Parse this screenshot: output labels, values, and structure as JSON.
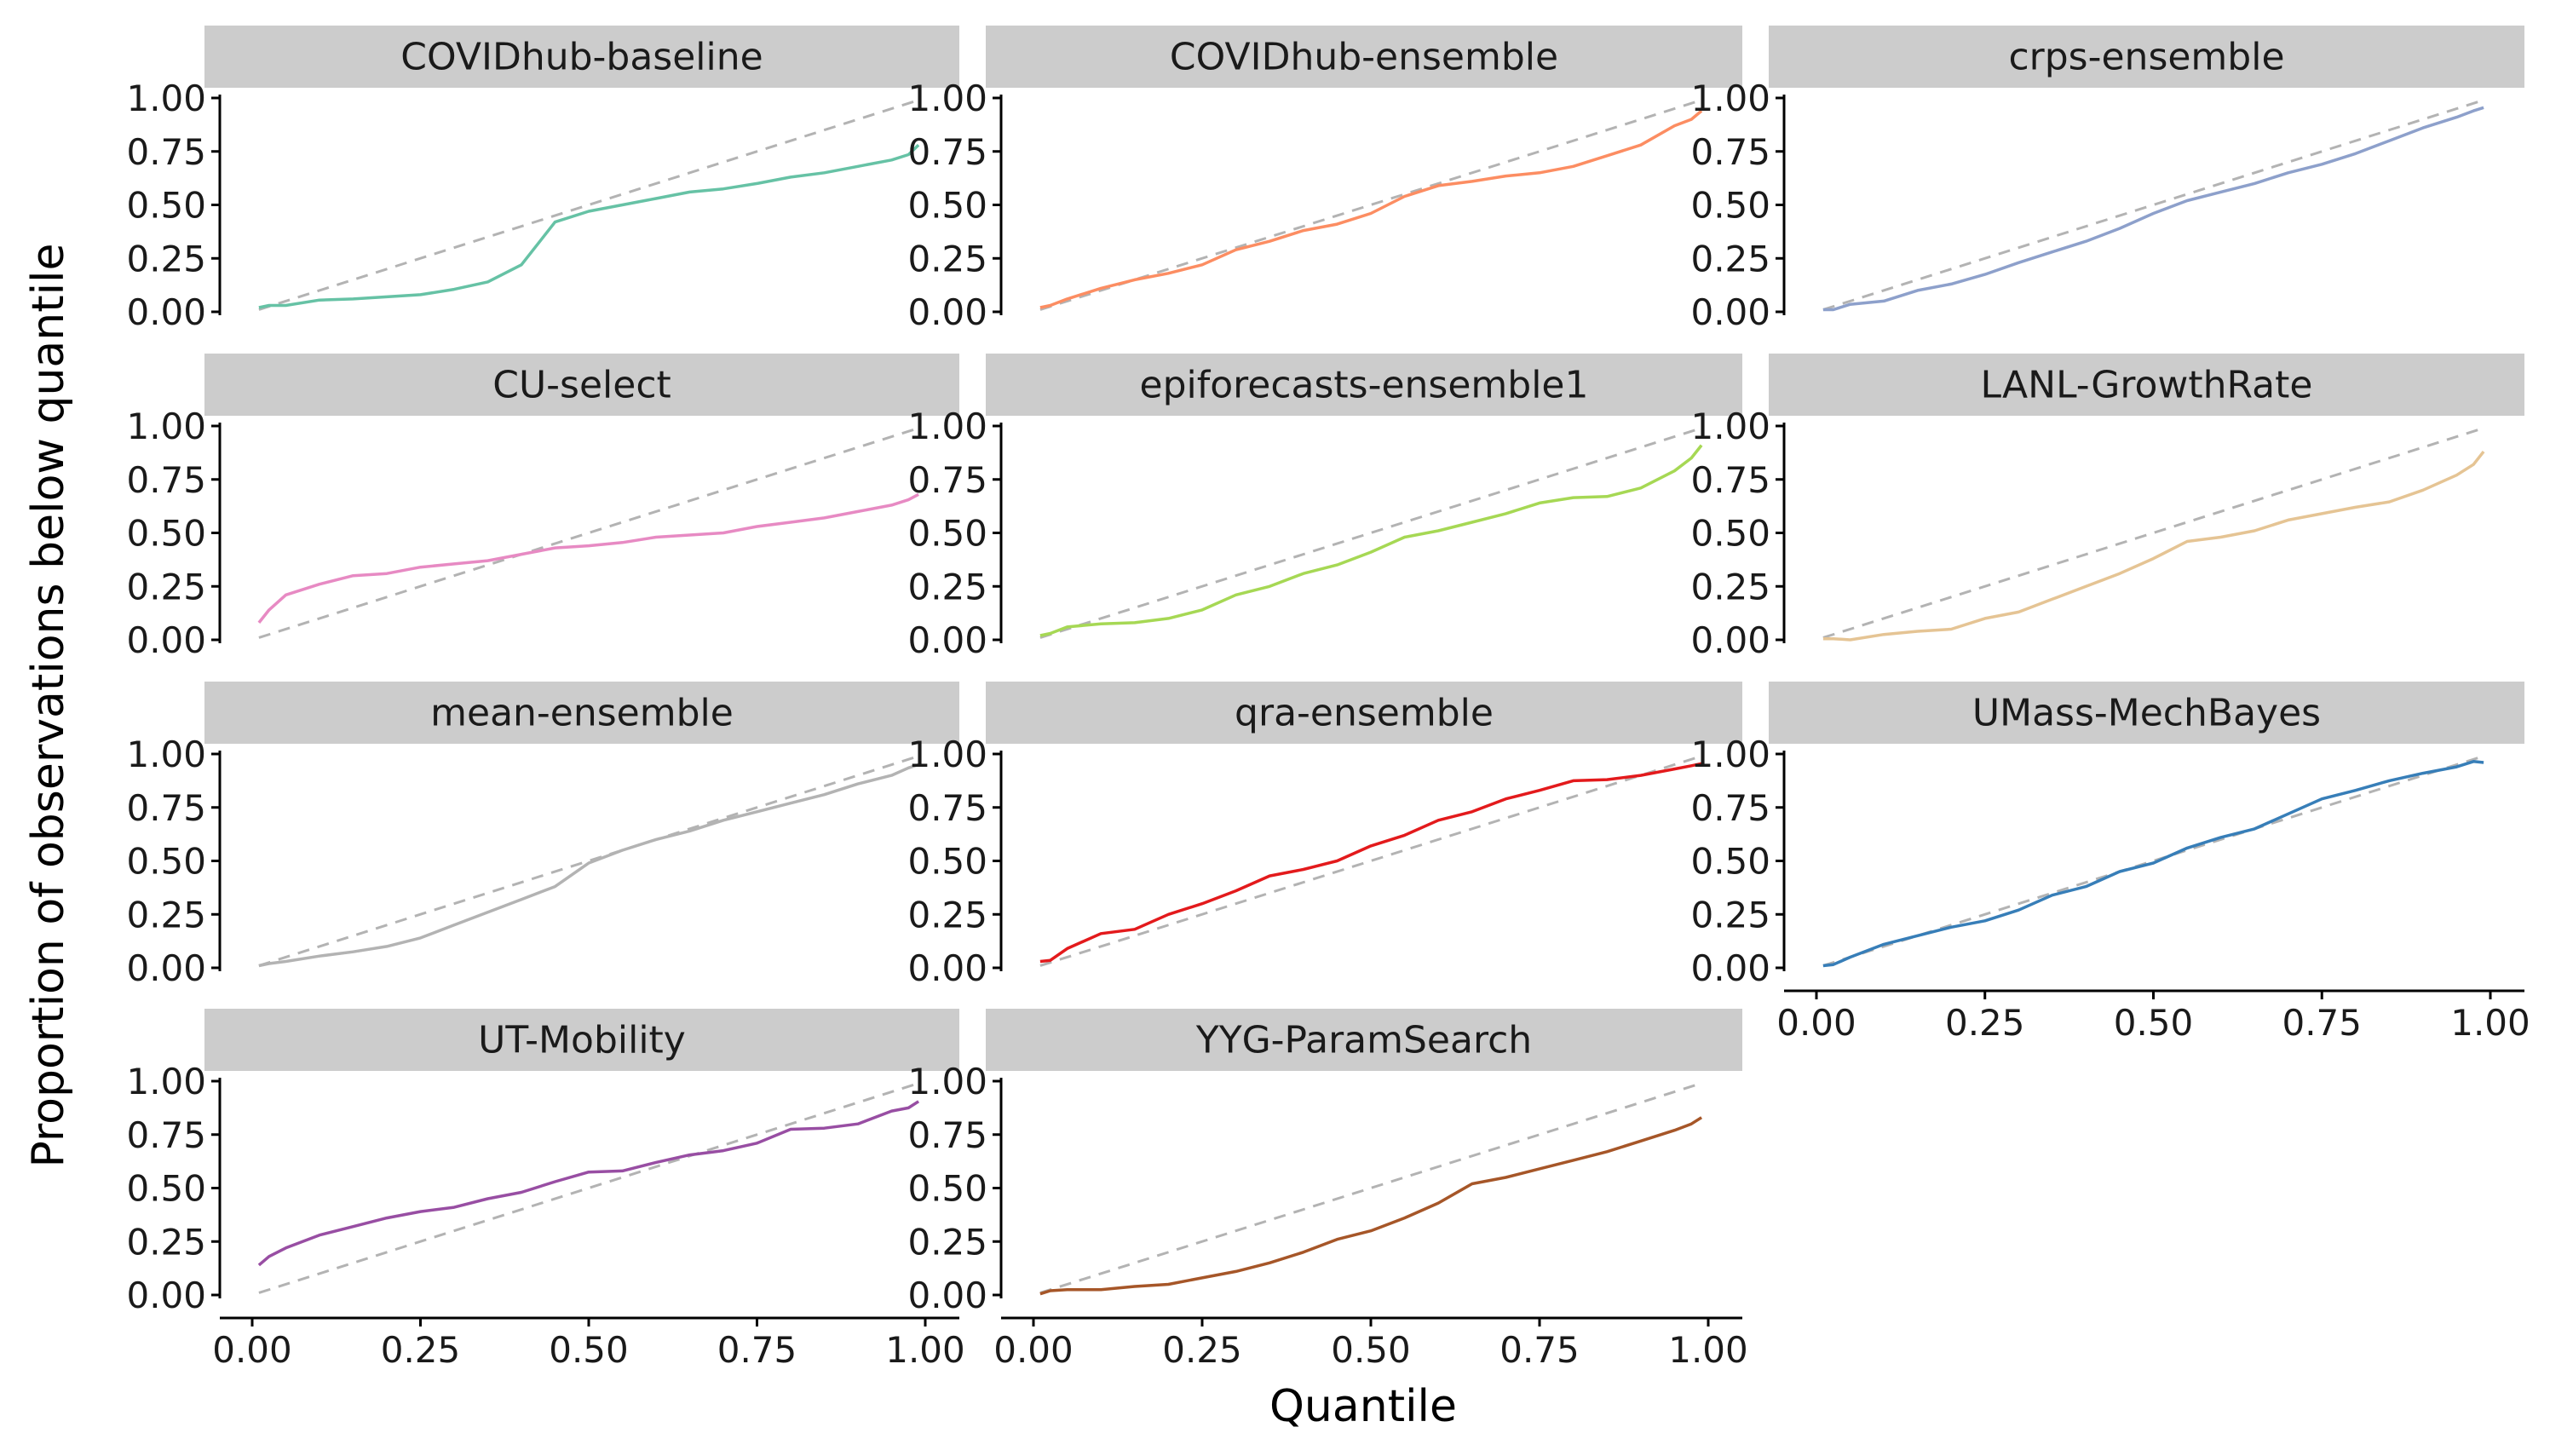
{
  "chart_data": {
    "type": "line",
    "xlabel": "Quantile",
    "ylabel": "Proportion of observations below quantile",
    "xlim": [
      0,
      1
    ],
    "ylim": [
      0,
      1
    ],
    "x_ticks": [
      "0.00",
      "0.25",
      "0.50",
      "0.75",
      "1.00"
    ],
    "y_ticks": [
      "0.00",
      "0.25",
      "0.50",
      "0.75",
      "1.00"
    ],
    "reference_line": "y = x (dashed, grey)",
    "reference_color": "#b3b3b3",
    "strip_color": "#cccccc",
    "grid": false,
    "panels": [
      {
        "name": "COVIDhub-baseline",
        "color": "#66c2a5",
        "points": [
          [
            0.01,
            0.02
          ],
          [
            0.025,
            0.03
          ],
          [
            0.05,
            0.03
          ],
          [
            0.1,
            0.055
          ],
          [
            0.15,
            0.06
          ],
          [
            0.2,
            0.07
          ],
          [
            0.25,
            0.08
          ],
          [
            0.3,
            0.105
          ],
          [
            0.35,
            0.14
          ],
          [
            0.4,
            0.22
          ],
          [
            0.45,
            0.42
          ],
          [
            0.5,
            0.47
          ],
          [
            0.55,
            0.5
          ],
          [
            0.6,
            0.53
          ],
          [
            0.65,
            0.56
          ],
          [
            0.7,
            0.575
          ],
          [
            0.75,
            0.6
          ],
          [
            0.8,
            0.63
          ],
          [
            0.85,
            0.65
          ],
          [
            0.9,
            0.68
          ],
          [
            0.95,
            0.71
          ],
          [
            0.975,
            0.735
          ],
          [
            0.99,
            0.78
          ]
        ]
      },
      {
        "name": "COVIDhub-ensemble",
        "color": "#fc8d62",
        "points": [
          [
            0.01,
            0.02
          ],
          [
            0.025,
            0.03
          ],
          [
            0.05,
            0.06
          ],
          [
            0.1,
            0.11
          ],
          [
            0.15,
            0.15
          ],
          [
            0.2,
            0.18
          ],
          [
            0.25,
            0.22
          ],
          [
            0.3,
            0.29
          ],
          [
            0.35,
            0.33
          ],
          [
            0.4,
            0.38
          ],
          [
            0.45,
            0.41
          ],
          [
            0.5,
            0.46
          ],
          [
            0.55,
            0.54
          ],
          [
            0.6,
            0.59
          ],
          [
            0.65,
            0.61
          ],
          [
            0.7,
            0.635
          ],
          [
            0.75,
            0.65
          ],
          [
            0.8,
            0.68
          ],
          [
            0.85,
            0.73
          ],
          [
            0.9,
            0.78
          ],
          [
            0.95,
            0.87
          ],
          [
            0.975,
            0.9
          ],
          [
            0.99,
            0.94
          ]
        ]
      },
      {
        "name": "crps-ensemble",
        "color": "#8da0cb",
        "points": [
          [
            0.01,
            0.01
          ],
          [
            0.025,
            0.01
          ],
          [
            0.05,
            0.035
          ],
          [
            0.1,
            0.05
          ],
          [
            0.15,
            0.1
          ],
          [
            0.2,
            0.13
          ],
          [
            0.25,
            0.175
          ],
          [
            0.3,
            0.23
          ],
          [
            0.35,
            0.28
          ],
          [
            0.4,
            0.33
          ],
          [
            0.45,
            0.39
          ],
          [
            0.5,
            0.46
          ],
          [
            0.55,
            0.52
          ],
          [
            0.6,
            0.56
          ],
          [
            0.65,
            0.6
          ],
          [
            0.7,
            0.65
          ],
          [
            0.75,
            0.69
          ],
          [
            0.8,
            0.74
          ],
          [
            0.85,
            0.8
          ],
          [
            0.9,
            0.86
          ],
          [
            0.95,
            0.91
          ],
          [
            0.975,
            0.94
          ],
          [
            0.99,
            0.955
          ]
        ]
      },
      {
        "name": "CU-select",
        "color": "#e78ac3",
        "points": [
          [
            0.01,
            0.08
          ],
          [
            0.025,
            0.14
          ],
          [
            0.05,
            0.21
          ],
          [
            0.1,
            0.26
          ],
          [
            0.15,
            0.3
          ],
          [
            0.2,
            0.31
          ],
          [
            0.25,
            0.34
          ],
          [
            0.3,
            0.355
          ],
          [
            0.35,
            0.37
          ],
          [
            0.4,
            0.4
          ],
          [
            0.45,
            0.43
          ],
          [
            0.5,
            0.44
          ],
          [
            0.55,
            0.455
          ],
          [
            0.6,
            0.48
          ],
          [
            0.65,
            0.49
          ],
          [
            0.7,
            0.5
          ],
          [
            0.75,
            0.53
          ],
          [
            0.8,
            0.55
          ],
          [
            0.85,
            0.57
          ],
          [
            0.9,
            0.6
          ],
          [
            0.95,
            0.63
          ],
          [
            0.975,
            0.655
          ],
          [
            0.99,
            0.68
          ]
        ]
      },
      {
        "name": "epiforecasts-ensemble1",
        "color": "#a6d854",
        "points": [
          [
            0.01,
            0.02
          ],
          [
            0.025,
            0.03
          ],
          [
            0.05,
            0.06
          ],
          [
            0.1,
            0.075
          ],
          [
            0.15,
            0.08
          ],
          [
            0.2,
            0.1
          ],
          [
            0.25,
            0.14
          ],
          [
            0.3,
            0.21
          ],
          [
            0.35,
            0.25
          ],
          [
            0.4,
            0.31
          ],
          [
            0.45,
            0.35
          ],
          [
            0.5,
            0.41
          ],
          [
            0.55,
            0.48
          ],
          [
            0.6,
            0.51
          ],
          [
            0.65,
            0.55
          ],
          [
            0.7,
            0.59
          ],
          [
            0.75,
            0.64
          ],
          [
            0.8,
            0.665
          ],
          [
            0.85,
            0.67
          ],
          [
            0.9,
            0.71
          ],
          [
            0.95,
            0.79
          ],
          [
            0.975,
            0.85
          ],
          [
            0.99,
            0.91
          ]
        ]
      },
      {
        "name": "LANL-GrowthRate",
        "color": "#e5c494",
        "points": [
          [
            0.01,
            0.005
          ],
          [
            0.025,
            0.005
          ],
          [
            0.05,
            0.0
          ],
          [
            0.1,
            0.025
          ],
          [
            0.15,
            0.04
          ],
          [
            0.2,
            0.05
          ],
          [
            0.25,
            0.1
          ],
          [
            0.3,
            0.13
          ],
          [
            0.35,
            0.19
          ],
          [
            0.4,
            0.25
          ],
          [
            0.45,
            0.31
          ],
          [
            0.5,
            0.38
          ],
          [
            0.55,
            0.46
          ],
          [
            0.6,
            0.48
          ],
          [
            0.65,
            0.51
          ],
          [
            0.7,
            0.56
          ],
          [
            0.75,
            0.59
          ],
          [
            0.8,
            0.62
          ],
          [
            0.85,
            0.645
          ],
          [
            0.9,
            0.7
          ],
          [
            0.95,
            0.77
          ],
          [
            0.975,
            0.82
          ],
          [
            0.99,
            0.88
          ]
        ]
      },
      {
        "name": "mean-ensemble",
        "color": "#b3b3b3",
        "points": [
          [
            0.01,
            0.01
          ],
          [
            0.025,
            0.02
          ],
          [
            0.05,
            0.03
          ],
          [
            0.1,
            0.055
          ],
          [
            0.15,
            0.075
          ],
          [
            0.2,
            0.1
          ],
          [
            0.25,
            0.14
          ],
          [
            0.3,
            0.2
          ],
          [
            0.35,
            0.26
          ],
          [
            0.4,
            0.32
          ],
          [
            0.45,
            0.38
          ],
          [
            0.5,
            0.49
          ],
          [
            0.55,
            0.55
          ],
          [
            0.6,
            0.6
          ],
          [
            0.65,
            0.64
          ],
          [
            0.7,
            0.69
          ],
          [
            0.75,
            0.73
          ],
          [
            0.8,
            0.77
          ],
          [
            0.85,
            0.81
          ],
          [
            0.9,
            0.86
          ],
          [
            0.95,
            0.9
          ],
          [
            0.975,
            0.935
          ],
          [
            0.99,
            0.95
          ]
        ]
      },
      {
        "name": "qra-ensemble",
        "color": "#e31a1c",
        "points": [
          [
            0.01,
            0.03
          ],
          [
            0.025,
            0.035
          ],
          [
            0.05,
            0.09
          ],
          [
            0.1,
            0.16
          ],
          [
            0.15,
            0.18
          ],
          [
            0.2,
            0.25
          ],
          [
            0.25,
            0.3
          ],
          [
            0.3,
            0.36
          ],
          [
            0.35,
            0.43
          ],
          [
            0.4,
            0.46
          ],
          [
            0.45,
            0.5
          ],
          [
            0.5,
            0.57
          ],
          [
            0.55,
            0.62
          ],
          [
            0.6,
            0.69
          ],
          [
            0.65,
            0.73
          ],
          [
            0.7,
            0.79
          ],
          [
            0.75,
            0.83
          ],
          [
            0.8,
            0.875
          ],
          [
            0.85,
            0.88
          ],
          [
            0.9,
            0.9
          ],
          [
            0.95,
            0.93
          ],
          [
            0.975,
            0.945
          ],
          [
            0.99,
            0.955
          ]
        ]
      },
      {
        "name": "UMass-MechBayes",
        "color": "#377eb8",
        "points": [
          [
            0.01,
            0.01
          ],
          [
            0.025,
            0.015
          ],
          [
            0.05,
            0.05
          ],
          [
            0.1,
            0.11
          ],
          [
            0.15,
            0.15
          ],
          [
            0.2,
            0.19
          ],
          [
            0.25,
            0.22
          ],
          [
            0.3,
            0.27
          ],
          [
            0.35,
            0.34
          ],
          [
            0.4,
            0.38
          ],
          [
            0.45,
            0.45
          ],
          [
            0.5,
            0.49
          ],
          [
            0.55,
            0.56
          ],
          [
            0.6,
            0.61
          ],
          [
            0.65,
            0.65
          ],
          [
            0.7,
            0.72
          ],
          [
            0.75,
            0.79
          ],
          [
            0.8,
            0.83
          ],
          [
            0.85,
            0.875
          ],
          [
            0.9,
            0.91
          ],
          [
            0.95,
            0.94
          ],
          [
            0.975,
            0.965
          ],
          [
            0.99,
            0.96
          ]
        ]
      },
      {
        "name": "UT-Mobility",
        "color": "#984ea3",
        "points": [
          [
            0.01,
            0.14
          ],
          [
            0.025,
            0.18
          ],
          [
            0.05,
            0.22
          ],
          [
            0.1,
            0.28
          ],
          [
            0.15,
            0.32
          ],
          [
            0.2,
            0.36
          ],
          [
            0.25,
            0.39
          ],
          [
            0.3,
            0.41
          ],
          [
            0.35,
            0.45
          ],
          [
            0.4,
            0.48
          ],
          [
            0.45,
            0.53
          ],
          [
            0.5,
            0.575
          ],
          [
            0.55,
            0.58
          ],
          [
            0.6,
            0.62
          ],
          [
            0.65,
            0.655
          ],
          [
            0.7,
            0.675
          ],
          [
            0.75,
            0.71
          ],
          [
            0.8,
            0.775
          ],
          [
            0.85,
            0.78
          ],
          [
            0.9,
            0.8
          ],
          [
            0.95,
            0.86
          ],
          [
            0.975,
            0.875
          ],
          [
            0.99,
            0.905
          ]
        ]
      },
      {
        "name": "YYG-ParamSearch",
        "color": "#a65628",
        "points": [
          [
            0.01,
            0.005
          ],
          [
            0.025,
            0.02
          ],
          [
            0.05,
            0.025
          ],
          [
            0.1,
            0.025
          ],
          [
            0.15,
            0.04
          ],
          [
            0.2,
            0.05
          ],
          [
            0.25,
            0.08
          ],
          [
            0.3,
            0.11
          ],
          [
            0.35,
            0.15
          ],
          [
            0.4,
            0.2
          ],
          [
            0.45,
            0.26
          ],
          [
            0.5,
            0.3
          ],
          [
            0.55,
            0.36
          ],
          [
            0.6,
            0.43
          ],
          [
            0.65,
            0.52
          ],
          [
            0.7,
            0.55
          ],
          [
            0.75,
            0.59
          ],
          [
            0.8,
            0.63
          ],
          [
            0.85,
            0.67
          ],
          [
            0.9,
            0.72
          ],
          [
            0.95,
            0.77
          ],
          [
            0.975,
            0.8
          ],
          [
            0.99,
            0.83
          ]
        ]
      }
    ]
  }
}
